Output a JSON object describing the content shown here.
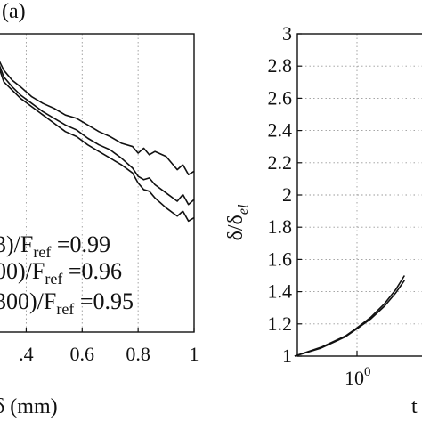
{
  "panel_tag": "(a)",
  "chart_data": [
    {
      "type": "line",
      "xlabel": "δ (mm)",
      "ylabel": "",
      "xlim": [
        0.3,
        1.0
      ],
      "x_ticks": [
        {
          "value": 0.4,
          "label": ".4"
        },
        {
          "value": 0.6,
          "label": "0.6"
        },
        {
          "value": 0.8,
          "label": "0.8"
        },
        {
          "value": 1.0,
          "label": "1"
        }
      ],
      "grid": true,
      "legend_position": "bottom-left",
      "legend": [
        {
          "prefix": "3)/F",
          "sub": "ref",
          "suffix": " =0.99"
        },
        {
          "prefix": "00)/F",
          "sub": "ref",
          "suffix": " =0.96"
        },
        {
          "prefix": "300)/F",
          "sub": "ref",
          "suffix": " =0.95"
        }
      ],
      "series": [
        {
          "x": [
            0.3,
            0.32,
            0.35,
            0.38,
            0.42,
            0.46,
            0.5,
            0.54,
            0.58,
            0.62,
            0.66,
            0.7,
            0.74,
            0.78,
            0.8,
            0.82,
            0.84,
            0.86,
            0.9,
            0.94,
            0.96,
            0.98,
            1.0
          ],
          "y": [
            0.985,
            0.978,
            0.972,
            0.968,
            0.962,
            0.958,
            0.955,
            0.951,
            0.949,
            0.945,
            0.941,
            0.938,
            0.934,
            0.932,
            0.928,
            0.931,
            0.927,
            0.929,
            0.926,
            0.918,
            0.921,
            0.915,
            0.917
          ]
        },
        {
          "x": [
            0.3,
            0.32,
            0.35,
            0.38,
            0.42,
            0.46,
            0.5,
            0.54,
            0.58,
            0.62,
            0.66,
            0.7,
            0.74,
            0.78,
            0.8,
            0.82,
            0.84,
            0.86,
            0.9,
            0.94,
            0.96,
            0.98,
            1.0
          ],
          "y": [
            0.983,
            0.974,
            0.968,
            0.963,
            0.958,
            0.953,
            0.949,
            0.945,
            0.942,
            0.937,
            0.933,
            0.93,
            0.925,
            0.919,
            0.914,
            0.912,
            0.913,
            0.909,
            0.904,
            0.899,
            0.903,
            0.897,
            0.9
          ]
        },
        {
          "x": [
            0.3,
            0.32,
            0.35,
            0.38,
            0.42,
            0.46,
            0.5,
            0.54,
            0.58,
            0.62,
            0.66,
            0.7,
            0.74,
            0.78,
            0.8,
            0.82,
            0.84,
            0.86,
            0.9,
            0.94,
            0.96,
            0.98,
            1.0
          ],
          "y": [
            0.981,
            0.971,
            0.966,
            0.961,
            0.956,
            0.951,
            0.946,
            0.941,
            0.938,
            0.933,
            0.929,
            0.925,
            0.921,
            0.916,
            0.91,
            0.906,
            0.905,
            0.901,
            0.895,
            0.89,
            0.893,
            0.887,
            0.889
          ]
        }
      ]
    },
    {
      "type": "line",
      "ylabel_main": "δ/δ",
      "ylabel_sub": "el",
      "xlabel": "t",
      "ylim": [
        1,
        3
      ],
      "yticks": [
        "1",
        "1.2",
        "1.4",
        "1.6",
        "1.8",
        "2",
        "2.2",
        "2.4",
        "2.6",
        "2.8",
        "3"
      ],
      "x_scale": "log",
      "x_tick_base": "10",
      "x_tick_exp": "0",
      "grid": true,
      "series": [
        {
          "x": [
            0.3,
            0.5,
            0.8,
            1.0,
            1.3,
            1.7,
            2.1,
            2.5
          ],
          "y": [
            1.0,
            1.05,
            1.12,
            1.17,
            1.23,
            1.31,
            1.39,
            1.47
          ]
        },
        {
          "x": [
            0.3,
            0.5,
            0.8,
            1.0,
            1.3,
            1.7,
            2.1,
            2.5
          ],
          "y": [
            1.0,
            1.055,
            1.125,
            1.175,
            1.24,
            1.325,
            1.41,
            1.5
          ]
        }
      ]
    }
  ]
}
